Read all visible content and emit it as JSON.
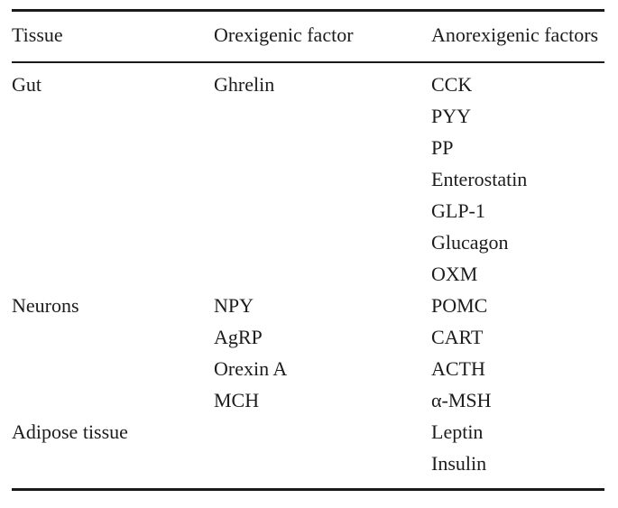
{
  "page": {
    "background_color": "#ffffff",
    "rule_color": "#1a1a1a",
    "text_color": "#1c1c1c"
  },
  "table": {
    "headers": [
      "Tissue",
      "Orexigenic factor",
      "Anorexigenic factors"
    ],
    "groups": [
      {
        "tissue": "Gut",
        "orexigenic": [
          "Ghrelin"
        ],
        "anorexigenic": [
          "CCK",
          "PYY",
          "PP",
          "Enterostatin",
          "GLP-1",
          "Glucagon",
          "OXM"
        ]
      },
      {
        "tissue": "Neurons",
        "orexigenic": [
          "NPY",
          "AgRP",
          "Orexin A",
          "MCH"
        ],
        "anorexigenic": [
          "POMC",
          "CART",
          "ACTH",
          "α-MSH"
        ]
      },
      {
        "tissue": "Adipose tissue",
        "orexigenic": [],
        "anorexigenic": [
          "Leptin",
          "Insulin"
        ]
      }
    ]
  }
}
